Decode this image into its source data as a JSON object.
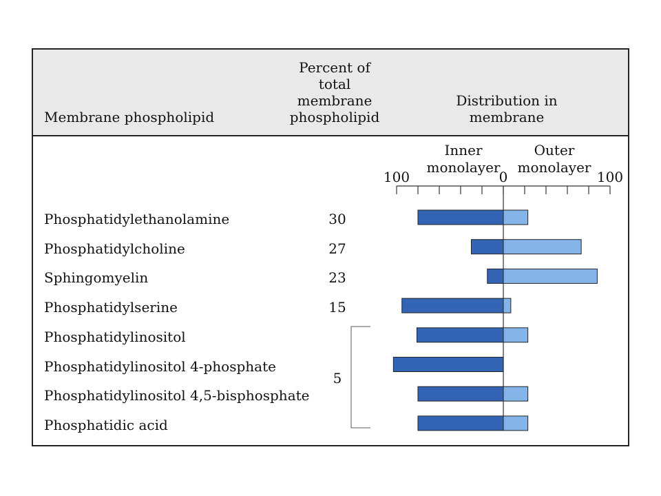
{
  "header": {
    "col_name": "Membrane phospholipid",
    "col_percent": [
      "Percent of",
      "total",
      "membrane",
      "phospholipid"
    ],
    "col_distribution": [
      "Distribution in",
      "membrane"
    ]
  },
  "chart_data": {
    "type": "bar",
    "xlabel_left": [
      "Inner",
      "monolayer"
    ],
    "xlabel_right": [
      "Outer",
      "monolayer"
    ],
    "tick_labels": [
      "100",
      "0",
      "100"
    ],
    "xlim": [
      -100,
      100
    ],
    "group_percent_label": "5",
    "colors": {
      "inner": "#3464b4",
      "outer": "#84b4e8"
    },
    "series": [
      {
        "name": "Inner monolayer",
        "values": [
          80,
          30,
          15,
          95,
          81,
          103,
          80,
          80
        ]
      },
      {
        "name": "Outer monolayer",
        "values": [
          23,
          73,
          88,
          7,
          23,
          0,
          23,
          23
        ]
      }
    ],
    "categories": [
      "Phosphatidylethanolamine",
      "Phosphatidylcholine",
      "Sphingomyelin",
      "Phosphatidylserine",
      "Phosphatidylinositol",
      "Phosphatidylinositol 4-phosphate",
      "Phosphatidylinositol 4,5-bisphosphate",
      "Phosphatidic acid"
    ],
    "percent_of_total": [
      "30",
      "27",
      "23",
      "15",
      "",
      "",
      "",
      ""
    ]
  }
}
